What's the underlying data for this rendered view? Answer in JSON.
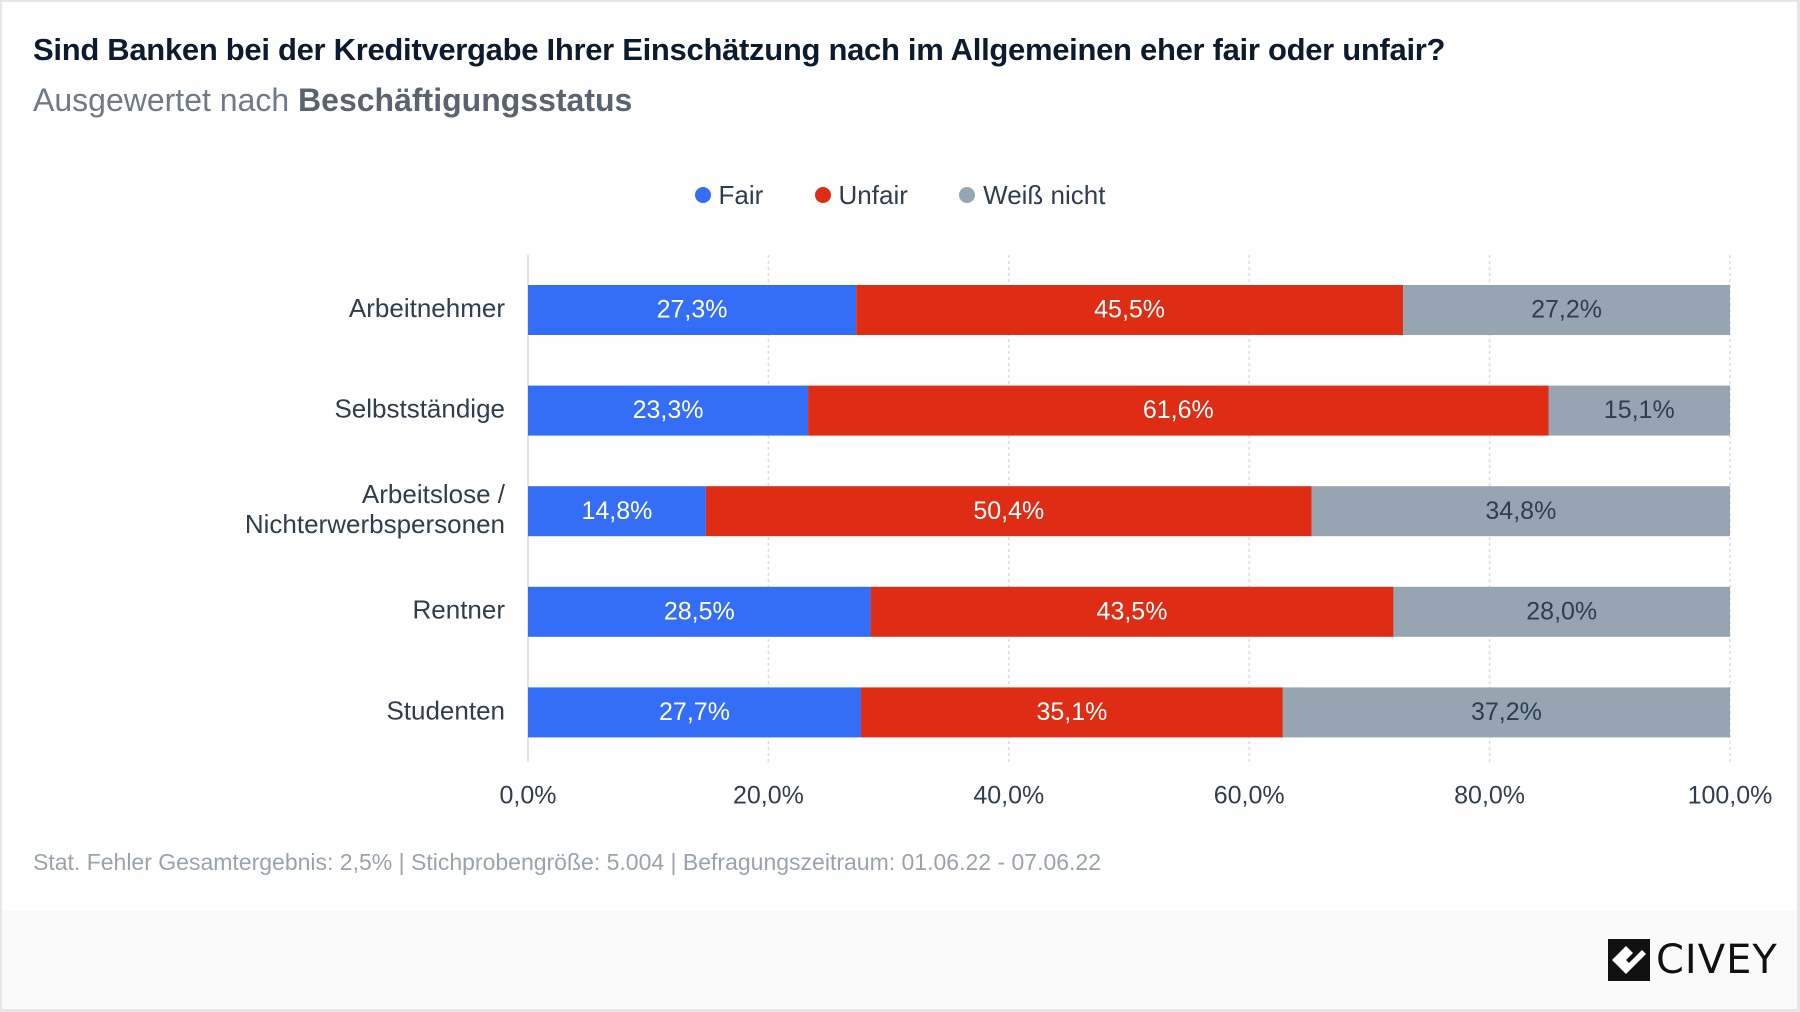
{
  "header": {
    "title": "Sind Banken bei der Kreditvergabe Ihrer Einschätzung nach im Allgemeinen eher fair oder unfair?",
    "subtitle_prefix": "Ausgewertet nach ",
    "subtitle_bold": "Beschäftigungsstatus"
  },
  "legend": [
    {
      "label": "Fair",
      "color": "#346df6"
    },
    {
      "label": "Unfair",
      "color": "#de2d14"
    },
    {
      "label": "Weiß nicht",
      "color": "#96a5b1"
    }
  ],
  "chart_data": {
    "type": "bar",
    "orientation": "horizontal",
    "stacked": true,
    "title": "Sind Banken bei der Kreditvergabe Ihrer Einschätzung nach im Allgemeinen eher fair oder unfair?",
    "subtitle": "Ausgewertet nach Beschäftigungsstatus",
    "xlabel": "",
    "ylabel": "",
    "xlim": [
      0,
      100
    ],
    "x_ticks": [
      "0,0%",
      "20,0%",
      "40,0%",
      "60,0%",
      "80,0%",
      "100,0%"
    ],
    "grid": true,
    "legend_position": "top-center",
    "categories": [
      [
        "Arbeitnehmer"
      ],
      [
        "Selbstständige"
      ],
      [
        "Arbeitslose /",
        "Nichterwerbspersonen"
      ],
      [
        "Rentner"
      ],
      [
        "Studenten"
      ]
    ],
    "series": [
      {
        "name": "Fair",
        "color": "#346df6",
        "label_color": "#ffffff",
        "values": [
          27.3,
          23.3,
          14.8,
          28.5,
          27.7
        ],
        "labels": [
          "27,3%",
          "23,3%",
          "14,8%",
          "28,5%",
          "27,7%"
        ]
      },
      {
        "name": "Unfair",
        "color": "#de2d14",
        "label_color": "#ffffff",
        "values": [
          45.5,
          61.6,
          50.4,
          43.5,
          35.1
        ],
        "labels": [
          "45,5%",
          "61,6%",
          "50,4%",
          "43,5%",
          "35,1%"
        ]
      },
      {
        "name": "Weiß nicht",
        "color": "#96a5b1",
        "label_color": "#2f3e4e",
        "values": [
          27.2,
          15.1,
          34.8,
          28.0,
          37.2
        ],
        "labels": [
          "27,2%",
          "15,1%",
          "34,8%",
          "28,0%",
          "37,2%"
        ]
      }
    ]
  },
  "note": "Stat. Fehler Gesamtergebnis: 2,5% | Stichprobengröße: 5.004 | Befragungszeitraum: 01.06.22 - 07.06.22",
  "brand": {
    "name": "CIVEY"
  }
}
